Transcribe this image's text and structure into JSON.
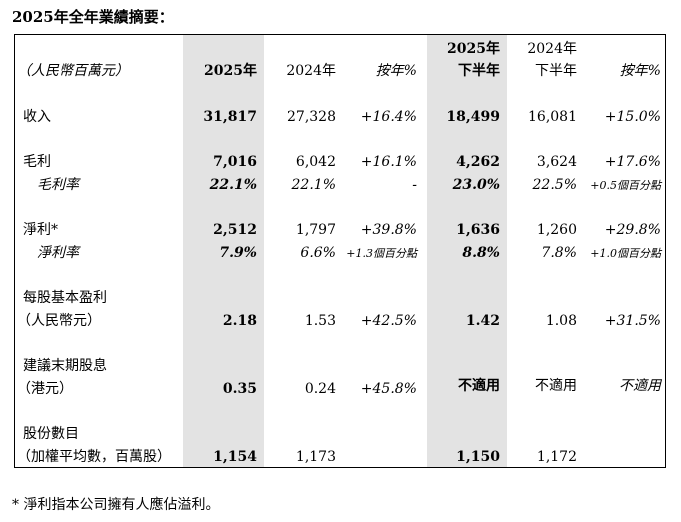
{
  "title": "2025年全年業績摘要：",
  "unit_label": "（人民幣百萬元）",
  "headers": {
    "fy2025": "2025年",
    "fy2024": "2024年",
    "yoy": "按年%",
    "h2025_line1": "2025年",
    "h2025_line2": "下半年",
    "h2024_line1": "2024年",
    "h2024_line2": "下半年",
    "h_yoy": "按年%"
  },
  "rows": {
    "revenue": {
      "label": "收入",
      "fy2025": "31,817",
      "fy2024": "27,328",
      "yoy": "+16.4%",
      "h2025": "18,499",
      "h2024": "16,081",
      "h_yoy": "+15.0%"
    },
    "gross_profit": {
      "label": "毛利",
      "fy2025": "7,016",
      "fy2024": "6,042",
      "yoy": "+16.1%",
      "h2025": "4,262",
      "h2024": "3,624",
      "h_yoy": "+17.6%"
    },
    "gross_margin": {
      "label": "毛利率",
      "fy2025": "22.1%",
      "fy2024": "22.1%",
      "yoy": "-",
      "h2025": "23.0%",
      "h2024": "22.5%",
      "h_yoy": "+0.5個百分點"
    },
    "net_profit": {
      "label": "淨利*",
      "fy2025": "2,512",
      "fy2024": "1,797",
      "yoy": "+39.8%",
      "h2025": "1,636",
      "h2024": "1,260",
      "h_yoy": "+29.8%"
    },
    "net_margin": {
      "label": "淨利率",
      "fy2025": "7.9%",
      "fy2024": "6.6%",
      "yoy": "+1.3個百分點",
      "h2025": "8.8%",
      "h2024": "7.8%",
      "h_yoy": "+1.0個百分點"
    },
    "eps": {
      "label1": "每股基本盈利",
      "label2": "（人民幣元）",
      "fy2025": "2.18",
      "fy2024": "1.53",
      "yoy": "+42.5%",
      "h2025": "1.42",
      "h2024": "1.08",
      "h_yoy": "+31.5%"
    },
    "dividend": {
      "label1": "建議末期股息",
      "label2": "（港元）",
      "fy2025": "0.35",
      "fy2024": "0.24",
      "yoy": "+45.8%",
      "h2025": "不適用",
      "h2024": "不適用",
      "h_yoy": "不適用"
    },
    "shares": {
      "label1": "股份數目",
      "label2": "（加權平均數，百萬股）",
      "fy2025": "1,154",
      "fy2024": "1,173",
      "h2025": "1,150",
      "h2024": "1,172"
    }
  },
  "footnote": "* 淨利指本公司擁有人應佔溢利。",
  "colors": {
    "shade": "#e3e3e3",
    "text": "#000000"
  }
}
